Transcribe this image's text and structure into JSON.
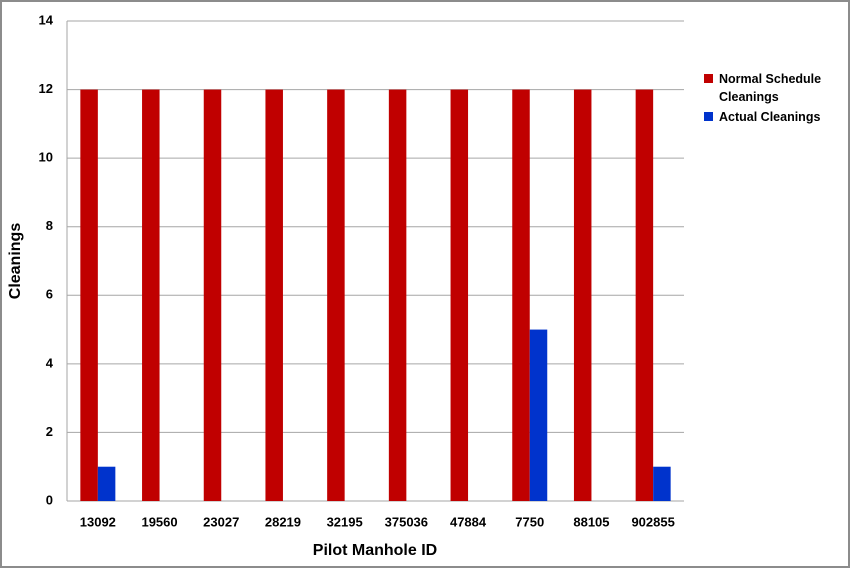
{
  "chart_data": {
    "type": "bar",
    "x_label": "Pilot Manhole ID",
    "y_label": "Cleanings",
    "categories": [
      "13092",
      "19560",
      "23027",
      "28219",
      "32195",
      "375036",
      "47884",
      "7750",
      "88105",
      "902855"
    ],
    "series": [
      {
        "name": "Normal Schedule Cleanings",
        "color": "#c00000",
        "values": [
          12,
          12,
          12,
          12,
          12,
          12,
          12,
          12,
          12,
          12
        ]
      },
      {
        "name": "Actual Cleanings",
        "color": "#0033cc",
        "values": [
          1,
          0,
          0,
          0,
          0,
          0,
          0,
          5,
          0,
          1
        ]
      }
    ],
    "ylim": [
      0,
      14
    ],
    "yticks": [
      0,
      2,
      4,
      6,
      8,
      10,
      12,
      14
    ],
    "grid": true,
    "legend": "right"
  }
}
